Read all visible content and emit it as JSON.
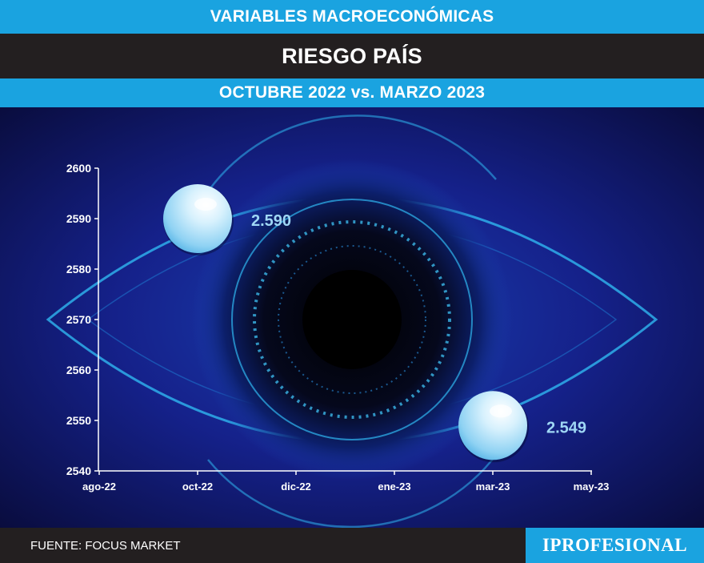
{
  "header": {
    "section": "VARIABLES MACROECONÓMICAS",
    "title": "RIESGO PAÍS",
    "subtitle": "OCTUBRE 2022 vs. MARZO 2023"
  },
  "footer": {
    "source": "FUENTE: FOCUS MARKET",
    "logo": "IPROFESIONAL"
  },
  "colors": {
    "band_blue": "#1aa3e0",
    "band_dark": "#231f20",
    "value_label": "#9fd7f5"
  },
  "chart_data": {
    "type": "scatter",
    "title": "RIESGO PAÍS",
    "subtitle": "OCTUBRE 2022 vs. MARZO 2023",
    "xlabel": "",
    "ylabel": "",
    "x_ticks": [
      "ago-22",
      "oct-22",
      "dic-22",
      "ene-23",
      "mar-23",
      "may-23"
    ],
    "y_ticks": [
      2540,
      2550,
      2560,
      2570,
      2580,
      2590,
      2600
    ],
    "ylim": [
      2540,
      2600
    ],
    "grid": false,
    "points": [
      {
        "x": "oct-22",
        "y": 2590,
        "label": "2.590"
      },
      {
        "x": "mar-23",
        "y": 2549,
        "label": "2.549"
      }
    ]
  }
}
